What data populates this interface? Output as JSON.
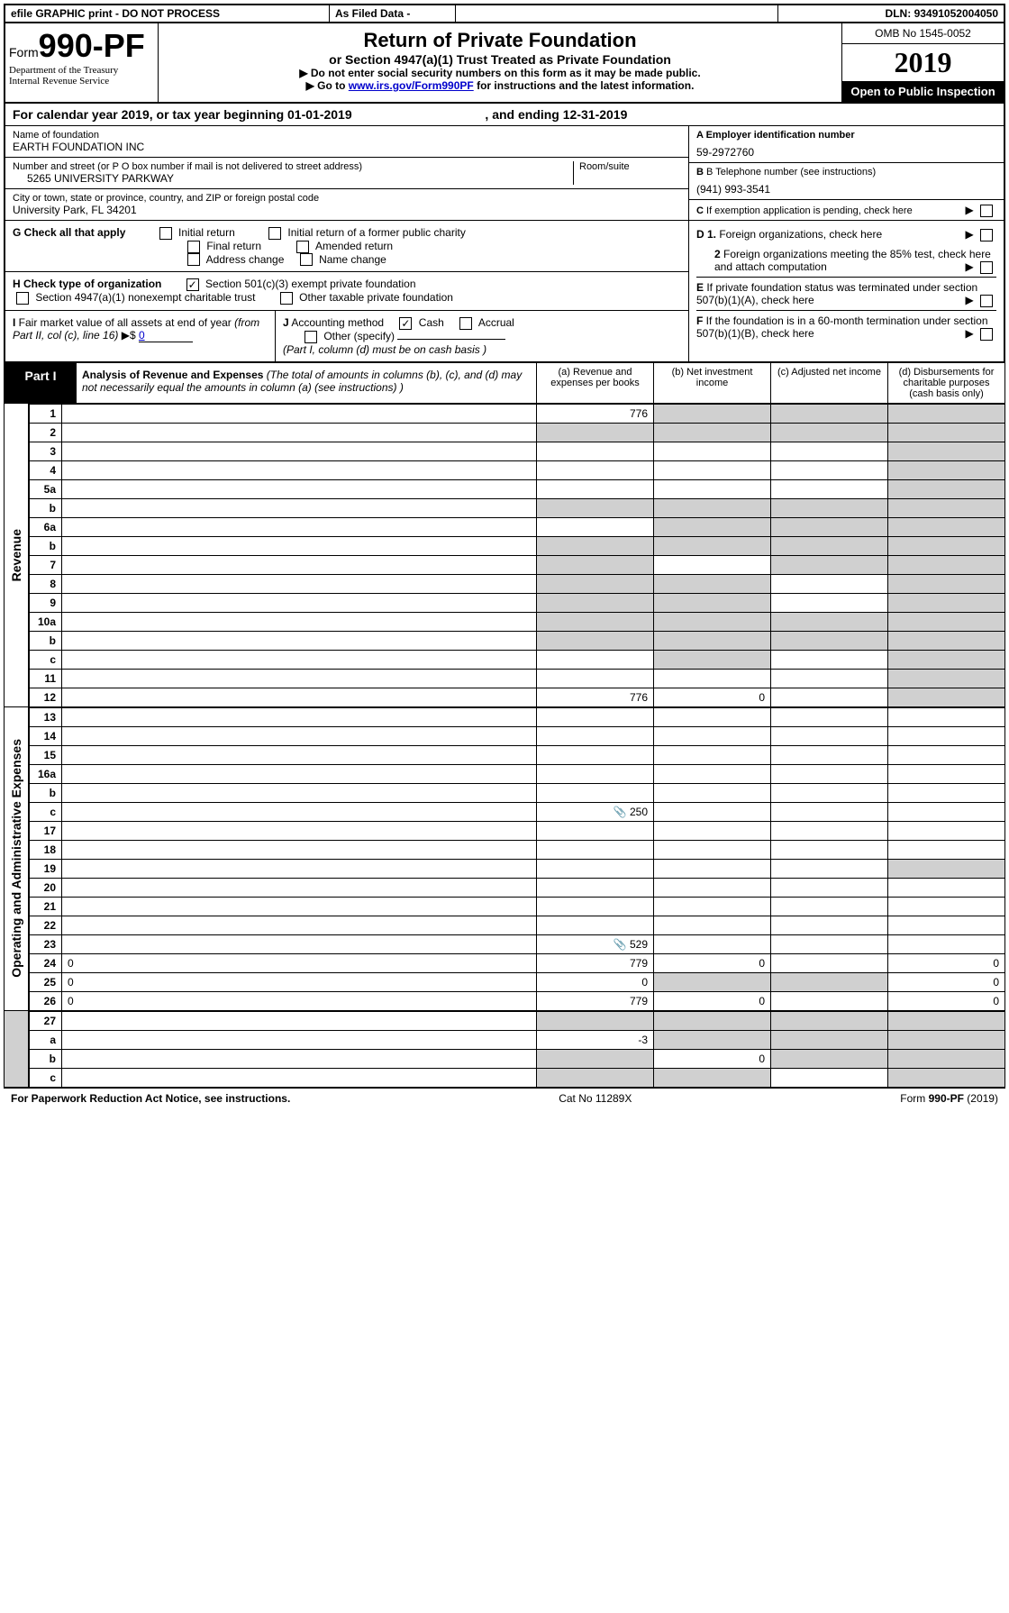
{
  "header": {
    "efile": "efile GRAPHIC print - DO NOT PROCESS",
    "asfiled": "As Filed Data -",
    "dln_label": "DLN:",
    "dln": "93491052004050"
  },
  "title_block": {
    "form_word": "Form",
    "form_num": "990-PF",
    "dept1": "Department of the Treasury",
    "dept2": "Internal Revenue Service",
    "title": "Return of Private Foundation",
    "subtitle": "or Section 4947(a)(1) Trust Treated as Private Foundation",
    "note1": "▶ Do not enter social security numbers on this form as it may be made public.",
    "note2_pre": "▶ Go to ",
    "note2_link": "www.irs.gov/Form990PF",
    "note2_post": " for instructions and the latest information.",
    "omb": "OMB No 1545-0052",
    "year": "2019",
    "inspect": "Open to Public Inspection"
  },
  "calendar": {
    "text_pre": "For calendar year 2019, or tax year beginning ",
    "begin": "01-01-2019",
    "mid": ", and ending ",
    "end": "12-31-2019"
  },
  "foundation": {
    "name_label": "Name of foundation",
    "name": "EARTH FOUNDATION INC",
    "addr_label": "Number and street (or P O  box number if mail is not delivered to street address)",
    "room_label": "Room/suite",
    "addr": "5265 UNIVERSITY PARKWAY",
    "city_label": "City or town, state or province, country, and ZIP or foreign postal code",
    "city": "University Park, FL  34201",
    "ein_label": "A Employer identification number",
    "ein": "59-2972760",
    "tel_label": "B Telephone number (see instructions)",
    "tel": "(941) 993-3541",
    "c_label": "C If exemption application is pending, check here"
  },
  "checks": {
    "g_label": "G Check all that apply",
    "g_opts": [
      "Initial return",
      "Initial return of a former public charity",
      "Final return",
      "Amended return",
      "Address change",
      "Name change"
    ],
    "h_label": "H Check type of organization",
    "h_opt1": "Section 501(c)(3) exempt private foundation",
    "h_opt2": "Section 4947(a)(1) nonexempt charitable trust",
    "h_opt3": "Other taxable private foundation",
    "i_label": "I Fair market value of all assets at end of year (from Part II, col  (c), line 16) ▶$ ",
    "i_val": "0",
    "j_label": "J Accounting method",
    "j_cash": "Cash",
    "j_accrual": "Accrual",
    "j_other": "Other (specify)",
    "j_note": "(Part I, column (d) must be on cash basis )",
    "d1": "D 1. Foreign organizations, check here",
    "d2": "2  Foreign organizations meeting the 85% test, check here and attach computation",
    "e": "E  If private foundation status was terminated under section 507(b)(1)(A), check here",
    "f": "F  If the foundation is in a 60-month termination under section 507(b)(1)(B), check here"
  },
  "part1": {
    "label": "Part I",
    "title": "Analysis of Revenue and Expenses",
    "title_note": " (The total of amounts in columns (b), (c), and (d) may not necessarily equal the amounts in column (a) (see instructions) )",
    "col_a": "(a)    Revenue and expenses per books",
    "col_b": "(b)   Net investment income",
    "col_c": "(c)   Adjusted net income",
    "col_d": "(d)   Disbursements for charitable purposes (cash basis only)"
  },
  "revenue_label": "Revenue",
  "expense_label": "Operating and Administrative Expenses",
  "lines": [
    {
      "n": "1",
      "d": "",
      "a": "776",
      "b": "",
      "c": "",
      "agray": false,
      "bgray": true,
      "cgray": true,
      "dgray": true
    },
    {
      "n": "2",
      "d": "",
      "a": "",
      "b": "",
      "c": "",
      "agray": true,
      "bgray": true,
      "cgray": true,
      "dgray": true
    },
    {
      "n": "3",
      "d": "",
      "a": "",
      "b": "",
      "c": "",
      "dgray": true
    },
    {
      "n": "4",
      "d": "",
      "a": "",
      "b": "",
      "c": "",
      "dgray": true
    },
    {
      "n": "5a",
      "d": "",
      "a": "",
      "b": "",
      "c": "",
      "dgray": true
    },
    {
      "n": "b",
      "d": "",
      "a": "",
      "b": "",
      "c": "",
      "agray": true,
      "bgray": true,
      "cgray": true,
      "dgray": true
    },
    {
      "n": "6a",
      "d": "",
      "a": "",
      "b": "",
      "c": "",
      "bgray": true,
      "cgray": true,
      "dgray": true
    },
    {
      "n": "b",
      "d": "",
      "a": "",
      "b": "",
      "c": "",
      "agray": true,
      "bgray": true,
      "cgray": true,
      "dgray": true
    },
    {
      "n": "7",
      "d": "",
      "a": "",
      "b": "",
      "c": "",
      "agray": true,
      "cgray": true,
      "dgray": true
    },
    {
      "n": "8",
      "d": "",
      "a": "",
      "b": "",
      "c": "",
      "agray": true,
      "bgray": true,
      "dgray": true
    },
    {
      "n": "9",
      "d": "",
      "a": "",
      "b": "",
      "c": "",
      "agray": true,
      "bgray": true,
      "dgray": true
    },
    {
      "n": "10a",
      "d": "",
      "a": "",
      "b": "",
      "c": "",
      "agray": true,
      "bgray": true,
      "cgray": true,
      "dgray": true
    },
    {
      "n": "b",
      "d": "",
      "a": "",
      "b": "",
      "c": "",
      "agray": true,
      "bgray": true,
      "cgray": true,
      "dgray": true
    },
    {
      "n": "c",
      "d": "",
      "a": "",
      "b": "",
      "c": "",
      "bgray": true,
      "dgray": true
    },
    {
      "n": "11",
      "d": "",
      "a": "",
      "b": "",
      "c": "",
      "dgray": true
    },
    {
      "n": "12",
      "d": "",
      "a": "776",
      "b": "0",
      "c": "",
      "dgray": true
    }
  ],
  "exp_lines": [
    {
      "n": "13",
      "d": "",
      "a": "",
      "b": "",
      "c": ""
    },
    {
      "n": "14",
      "d": "",
      "a": "",
      "b": "",
      "c": ""
    },
    {
      "n": "15",
      "d": "",
      "a": "",
      "b": "",
      "c": ""
    },
    {
      "n": "16a",
      "d": "",
      "a": "",
      "b": "",
      "c": ""
    },
    {
      "n": "b",
      "d": "",
      "a": "",
      "b": "",
      "c": ""
    },
    {
      "n": "c",
      "d": "",
      "a": "250",
      "b": "",
      "c": "",
      "icon": true
    },
    {
      "n": "17",
      "d": "",
      "a": "",
      "b": "",
      "c": ""
    },
    {
      "n": "18",
      "d": "",
      "a": "",
      "b": "",
      "c": ""
    },
    {
      "n": "19",
      "d": "",
      "a": "",
      "b": "",
      "c": "",
      "dgray": true
    },
    {
      "n": "20",
      "d": "",
      "a": "",
      "b": "",
      "c": ""
    },
    {
      "n": "21",
      "d": "",
      "a": "",
      "b": "",
      "c": ""
    },
    {
      "n": "22",
      "d": "",
      "a": "",
      "b": "",
      "c": ""
    },
    {
      "n": "23",
      "d": "",
      "a": "529",
      "b": "",
      "c": "",
      "icon": true
    },
    {
      "n": "24",
      "d": "0",
      "a": "779",
      "b": "0",
      "c": ""
    },
    {
      "n": "25",
      "d": "0",
      "a": "0",
      "b": "",
      "c": "",
      "bgray": true,
      "cgray": true
    },
    {
      "n": "26",
      "d": "0",
      "a": "779",
      "b": "0",
      "c": ""
    }
  ],
  "bottom_lines": [
    {
      "n": "27",
      "d": "",
      "a": "",
      "b": "",
      "c": "",
      "agray": true,
      "bgray": true,
      "cgray": true,
      "dgray": true
    },
    {
      "n": "a",
      "d": "",
      "a": "-3",
      "b": "",
      "c": "",
      "bgray": true,
      "cgray": true,
      "dgray": true
    },
    {
      "n": "b",
      "d": "",
      "a": "",
      "b": "0",
      "c": "",
      "agray": true,
      "cgray": true,
      "dgray": true
    },
    {
      "n": "c",
      "d": "",
      "a": "",
      "b": "",
      "c": "",
      "agray": true,
      "bgray": true,
      "dgray": true
    }
  ],
  "footer": {
    "left": "For Paperwork Reduction Act Notice, see instructions.",
    "mid": "Cat  No  11289X",
    "right": "Form 990-PF (2019)"
  }
}
